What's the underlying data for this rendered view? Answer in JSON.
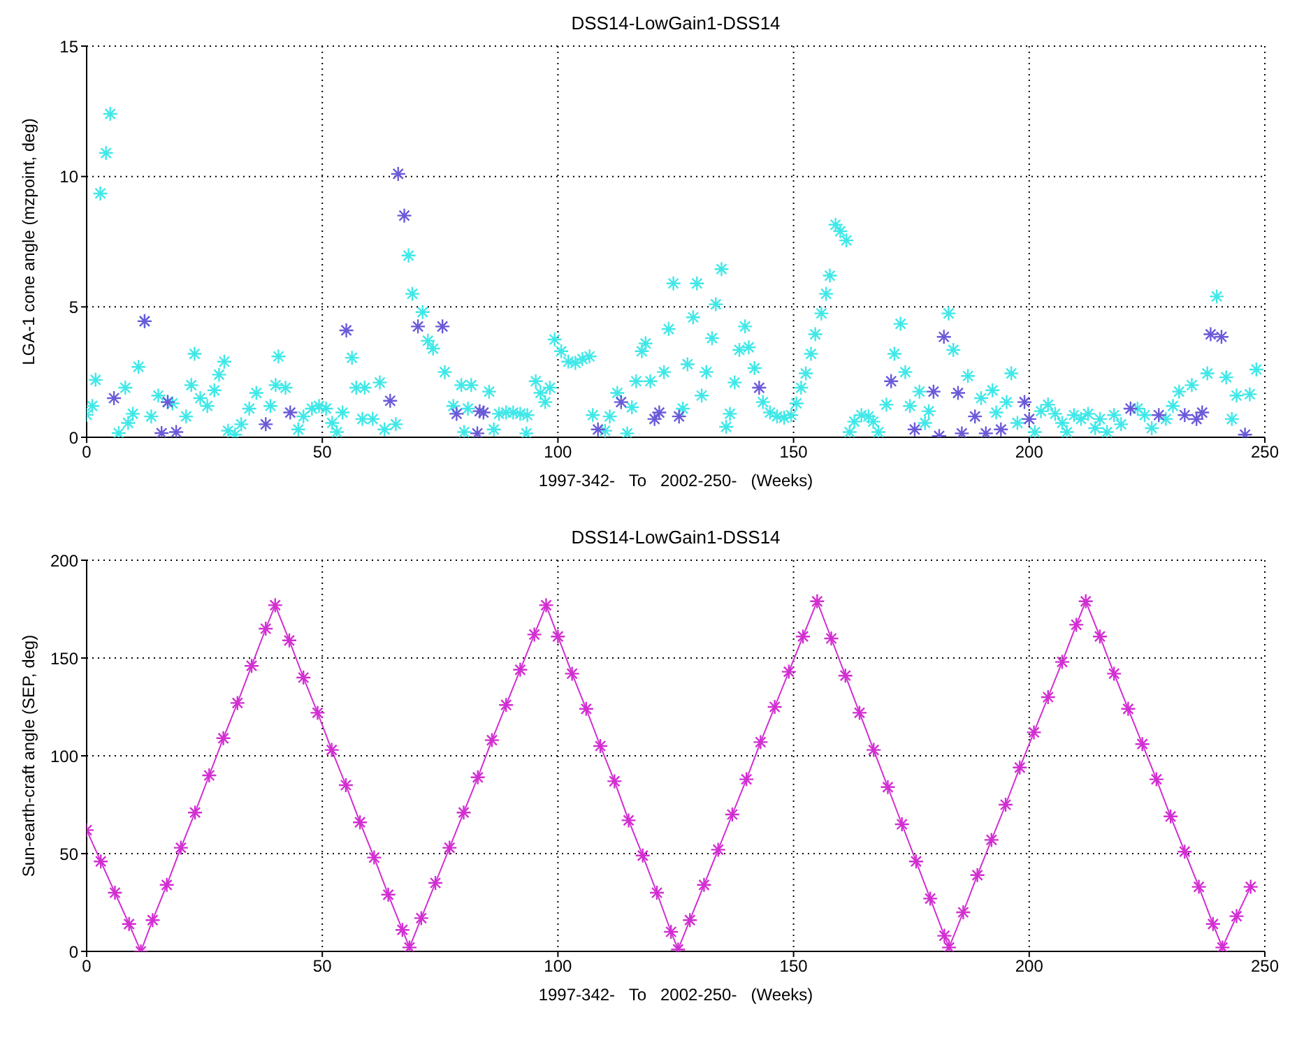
{
  "chart_data": [
    {
      "type": "scatter",
      "title": "DSS14-LowGain1-DSS14",
      "xlabel": "1997-342-   To   2002-250-   (Weeks)",
      "ylabel": "LGA-1 cone angle (mzpoint, deg)",
      "xlim": [
        0,
        250
      ],
      "xticks": [
        0,
        50,
        100,
        150,
        200,
        250
      ],
      "ylim": [
        0,
        15
      ],
      "yticks": [
        0,
        5,
        10,
        15
      ],
      "grid": true,
      "marker": "cross",
      "series": [
        {
          "color": "#40e8e8",
          "x": [
            0,
            1.2,
            1.9,
            2.9,
            4.1,
            5.0,
            6.8,
            8.2,
            8.8,
            9.8,
            11,
            12.3,
            13.7,
            15.2,
            17.2,
            18.2,
            21.1,
            22.2,
            22.9,
            24.1,
            25.6,
            27.1,
            28.1,
            29.2,
            30,
            31.5,
            32.8,
            34.5,
            36,
            39,
            40.1,
            40.7,
            42.2,
            44.9,
            46,
            47.8,
            49.3,
            50.8,
            52.1,
            53.1,
            54.3,
            56.3,
            57.2,
            58.5,
            59,
            60.7,
            62.2,
            63.2,
            65.6,
            68.3,
            69.1,
            71.3,
            72.4,
            73.5,
            76,
            77.8,
            79.5,
            80.1,
            80.9,
            81.6,
            85.4,
            86.4,
            87.5,
            89,
            90.5,
            92,
            93.3,
            93.5,
            95.3,
            96.3,
            97.3,
            98.3,
            99.3,
            100.7,
            102.2,
            103.7,
            105.2,
            106.7,
            107.4,
            110,
            111,
            112.6,
            114.7,
            115.7,
            116.6,
            117.8,
            118.6,
            119.6,
            122.5,
            123.5,
            124.5,
            126.5,
            127.5,
            128.7,
            129.5,
            130.5,
            131.5,
            132.7,
            133.5,
            134.7,
            135.7,
            136.5,
            137.5,
            138.5,
            139.7,
            140.5,
            141.7,
            143.5,
            145,
            146.5,
            148,
            149.5,
            150.6,
            151.6,
            152.6,
            153.7,
            154.6,
            155.9,
            156.9,
            157.7,
            158.9,
            159.9,
            161.2,
            161.9,
            162.9,
            164.4,
            165.9,
            166.9,
            168,
            169.7,
            171.4,
            172.7,
            173.7,
            174.7,
            176.7,
            177.9,
            178.7,
            182.9,
            183.9,
            187,
            189.8,
            192.2,
            193,
            195.2,
            196.2,
            197.5,
            201.2,
            202.5,
            204,
            205.5,
            207,
            208,
            209.5,
            211,
            212.5,
            214,
            215,
            216.5,
            218,
            219.5,
            223,
            224.5,
            226,
            229,
            230.5,
            231.8,
            234.5,
            237.8,
            239.8,
            241.8,
            243,
            244,
            246.8,
            248.2
          ],
          "values": [
            0.86,
            1.2,
            2.2,
            9.35,
            10.9,
            12.4,
            0.16,
            1.9,
            0.55,
            0.9,
            2.7,
            4.45,
            0.8,
            1.6,
            1.35,
            1.3,
            0.8,
            2.0,
            3.2,
            1.5,
            1.2,
            1.8,
            2.4,
            2.9,
            0.25,
            0.1,
            0.5,
            1.1,
            1.7,
            1.2,
            2.0,
            3.1,
            1.9,
            0.3,
            0.8,
            1.1,
            1.2,
            1.1,
            0.55,
            0.2,
            0.95,
            3.05,
            1.9,
            0.7,
            1.9,
            0.7,
            2.1,
            0.3,
            0.5,
            6.97,
            5.5,
            4.8,
            3.7,
            3.4,
            2.5,
            1.2,
            2.0,
            0.2,
            1.1,
            2.0,
            1.75,
            0.3,
            0.9,
            0.95,
            0.95,
            0.9,
            0.15,
            0.85,
            2.15,
            1.7,
            1.35,
            1.9,
            3.75,
            3.3,
            2.9,
            2.85,
            3.0,
            3.1,
            0.85,
            0.25,
            0.8,
            1.7,
            0.15,
            1.15,
            2.15,
            3.3,
            3.6,
            2.15,
            2.5,
            4.15,
            5.9,
            1.1,
            2.8,
            4.6,
            5.9,
            1.6,
            2.5,
            3.8,
            5.1,
            6.45,
            0.4,
            0.9,
            2.1,
            3.35,
            4.25,
            3.45,
            2.65,
            1.35,
            0.95,
            0.8,
            0.75,
            0.85,
            1.3,
            1.9,
            2.45,
            3.2,
            3.95,
            4.75,
            5.5,
            6.2,
            8.15,
            7.9,
            7.55,
            0.2,
            0.6,
            0.85,
            0.8,
            0.6,
            0.2,
            1.25,
            3.2,
            4.35,
            2.5,
            1.2,
            1.75,
            0.55,
            1.0,
            4.75,
            3.35,
            2.35,
            1.5,
            1.8,
            0.95,
            1.35,
            2.45,
            0.55,
            0.2,
            1.0,
            1.25,
            0.9,
            0.55,
            0.2,
            0.85,
            0.7,
            0.9,
            0.35,
            0.7,
            0.2,
            0.85,
            0.5,
            1.1,
            0.85,
            0.35,
            0.7,
            1.2,
            1.75,
            2.0,
            2.45,
            5.4,
            2.3,
            0.7,
            1.6,
            1.65,
            2.6
          ]
        },
        {
          "color": "#6a5ad8",
          "x": [
            5.8,
            12.3,
            15.9,
            17.2,
            19,
            38,
            43.2,
            55.1,
            64.4,
            66.1,
            67.4,
            70.3,
            75.5,
            78.5,
            82.9,
            83.4,
            84.2,
            108.5,
            113.4,
            120.5,
            121.5,
            125.7,
            142.7,
            170.7,
            175.7,
            179.7,
            180.9,
            181.9,
            184.9,
            185.7,
            188.5,
            190.8,
            194,
            199,
            200,
            221.5,
            227.5,
            233,
            235.5,
            236.7,
            238.5,
            240.8,
            245.8
          ],
          "values": [
            1.5,
            4.45,
            0.16,
            1.35,
            0.2,
            0.5,
            0.95,
            4.1,
            1.4,
            10.1,
            8.5,
            4.25,
            4.25,
            0.9,
            0.15,
            1.0,
            0.95,
            0.3,
            1.35,
            0.7,
            0.95,
            0.8,
            1.9,
            2.15,
            0.3,
            1.75,
            0.05,
            3.85,
            1.7,
            0.15,
            0.8,
            0.15,
            0.3,
            1.35,
            0.7,
            1.1,
            0.85,
            0.85,
            0.7,
            0.95,
            3.95,
            3.85,
            0.1
          ]
        }
      ]
    },
    {
      "type": "line",
      "title": "DSS14-LowGain1-DSS14",
      "xlabel": "1997-342-   To   2002-250-   (Weeks)",
      "ylabel": "Sun-earth-craft angle (SEP, deg)",
      "xlim": [
        0,
        250
      ],
      "xticks": [
        0,
        50,
        100,
        150,
        200,
        250
      ],
      "ylim": [
        0,
        200
      ],
      "yticks": [
        0,
        50,
        100,
        150,
        200
      ],
      "grid": true,
      "marker": "cross",
      "series": [
        {
          "color": "#d22ed2",
          "x": [
            0,
            3,
            6,
            9,
            11.5,
            14,
            17,
            20,
            23,
            26,
            29,
            32,
            35,
            38,
            40,
            43,
            46,
            49,
            52,
            55,
            58,
            61,
            64,
            67,
            68.5,
            71,
            74,
            77,
            80,
            83,
            86,
            89,
            92,
            95,
            97.5,
            100,
            103,
            106,
            109,
            112,
            115,
            118,
            121,
            124,
            125.5,
            128,
            131,
            134,
            137,
            140,
            143,
            146,
            149,
            152,
            155,
            158,
            161,
            164,
            167,
            170,
            173,
            176,
            179,
            182,
            183,
            186,
            189,
            192,
            195,
            198,
            201,
            204,
            207,
            210,
            212,
            215,
            218,
            221,
            224,
            227,
            230,
            233,
            236,
            239,
            241,
            244,
            247
          ],
          "values": [
            62,
            46,
            30,
            14,
            0,
            16,
            34,
            53,
            71,
            90,
            109,
            127,
            146,
            165,
            177,
            159,
            140,
            122,
            103,
            85,
            66,
            48,
            29,
            11,
            2,
            17,
            35,
            53,
            71,
            89,
            108,
            126,
            144,
            162,
            177,
            161,
            142,
            124,
            105,
            87,
            67,
            49,
            30,
            10,
            1,
            16,
            34,
            52,
            70,
            88,
            107,
            125,
            143,
            161,
            179,
            160,
            141,
            122,
            103,
            84,
            65,
            46,
            27,
            8,
            2,
            20,
            39,
            57,
            75,
            94,
            112,
            130,
            148,
            167,
            179,
            161,
            142,
            124,
            106,
            88,
            69,
            51,
            33,
            14,
            2,
            18,
            33
          ]
        }
      ]
    }
  ]
}
